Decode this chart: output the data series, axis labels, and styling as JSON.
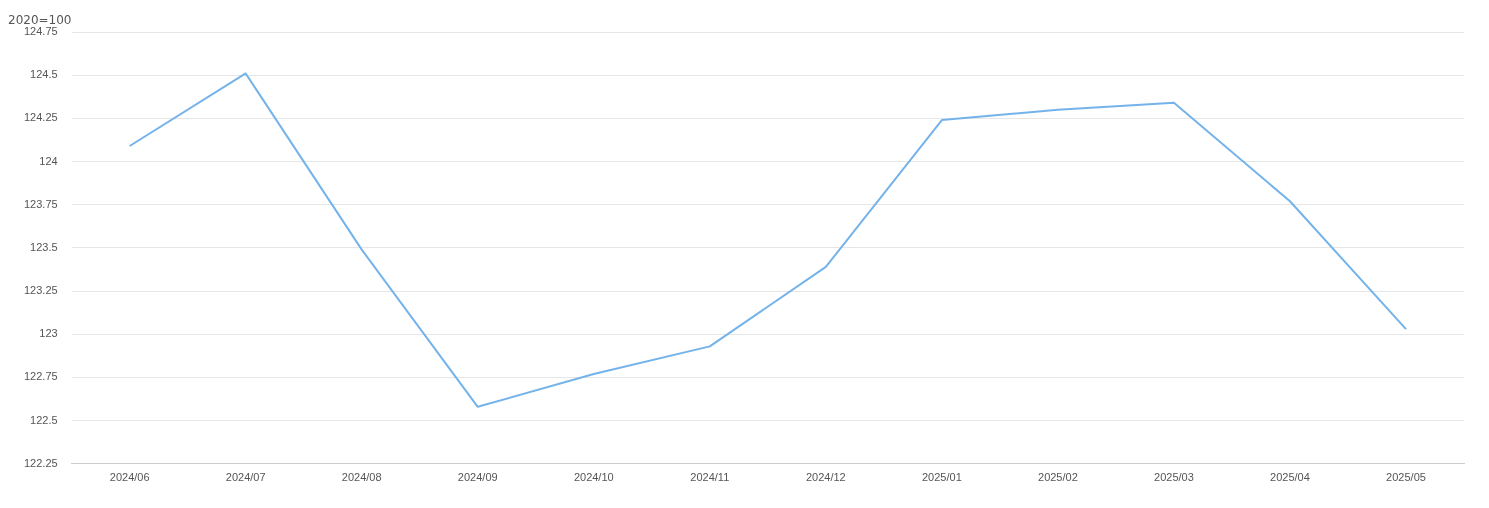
{
  "chart_data": {
    "type": "line",
    "ylabel": "2020=100",
    "categories": [
      "2024/06",
      "2024/07",
      "2024/08",
      "2024/09",
      "2024/10",
      "2024/11",
      "2024/12",
      "2025/01",
      "2025/02",
      "2025/03",
      "2025/04",
      "2025/05"
    ],
    "series": [
      {
        "color": "#74b3ea",
        "values": [
          124.09,
          124.51,
          123.49,
          122.58,
          122.77,
          122.93,
          123.39,
          124.24,
          124.3,
          124.34,
          123.77,
          123.03
        ]
      }
    ],
    "ylim": [
      122.25,
      124.75
    ],
    "yticks": [
      122.25,
      122.5,
      122.75,
      123,
      123.25,
      123.5,
      123.75,
      124,
      124.25,
      124.5,
      124.75
    ],
    "grid": "y",
    "marker": "none",
    "line_style": "solid",
    "legend": false
  }
}
